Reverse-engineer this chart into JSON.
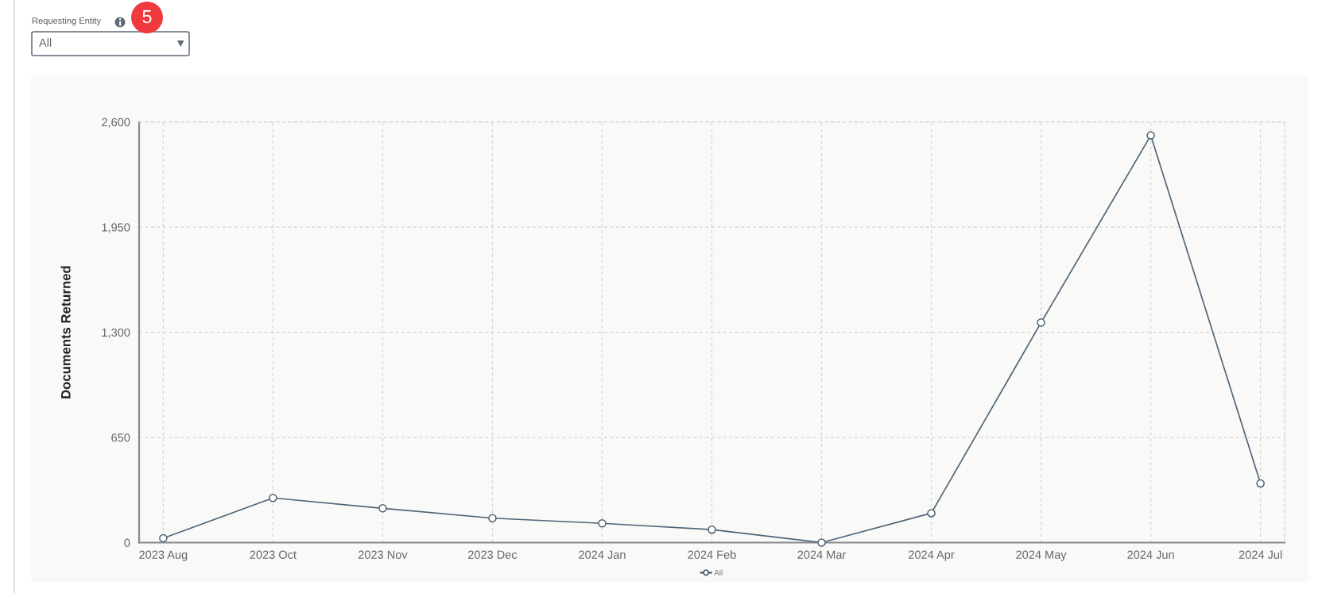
{
  "chart_data": {
    "type": "line",
    "ylabel": "Documents Returned",
    "categories": [
      "2023 Aug",
      "2023 Oct",
      "2023 Nov",
      "2023 Dec",
      "2024 Jan",
      "2024 Feb",
      "2024 Mar",
      "2024 Apr",
      "2024 May",
      "2024 Jun",
      "2024 Jul"
    ],
    "series": [
      {
        "name": "All",
        "color": "#4f6577",
        "values": [
          27,
          276,
          212,
          151,
          119,
          80,
          0,
          182,
          1360,
          2517,
          366
        ]
      }
    ],
    "ylim": [
      0,
      2600
    ],
    "yticks": [
      0,
      650,
      {
        "value": 1300,
        "label": "1,300"
      },
      {
        "value": 1950,
        "label": "1,950"
      },
      {
        "value": 2600,
        "label": "2,600"
      }
    ],
    "grid": true,
    "legend": "bottom",
    "marker": "circle",
    "line_style": "solid",
    "annotations": [
      "Requesting Entity",
      "All",
      "5"
    ]
  }
}
